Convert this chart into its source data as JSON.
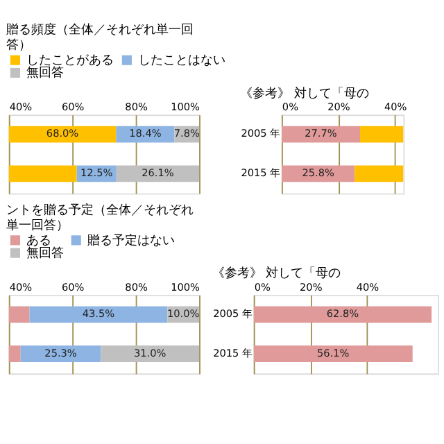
{
  "chart_data": [
    {
      "type": "bar",
      "orientation": "horizontal",
      "title": "贈る頻度（全体／それぞれ単一回答）",
      "categories": [
        null,
        null
      ],
      "legend": "top",
      "grid": "x",
      "xlim": [
        40,
        100
      ],
      "xticks": [
        {
          "value": 40,
          "label": "40%"
        },
        {
          "value": 60,
          "label": "60%"
        },
        {
          "value": 80,
          "label": "80%"
        },
        {
          "value": 100,
          "label": "100%"
        }
      ],
      "series": [
        {
          "name": "したことがある",
          "color": "#ffc000",
          "values": [
            68.0,
            53.5
          ],
          "base": [
            5.8,
            7.9
          ],
          "value_labels": [
            "68.0%",
            null
          ]
        },
        {
          "name": "したことはない",
          "color": "#8db4e2",
          "values": [
            18.4,
            12.5
          ],
          "base": [
            73.8,
            61.4
          ],
          "value_labels": [
            "18.4%",
            "12.5%"
          ]
        },
        {
          "name": "無回答",
          "color": "#c0c0c0",
          "values": [
            7.8,
            26.1
          ],
          "base": [
            92.2,
            73.9
          ],
          "value_labels": [
            "7.8%",
            "26.1%"
          ]
        }
      ]
    },
    {
      "type": "bar",
      "orientation": "horizontal",
      "title": "《参考》 対して「母の",
      "categories": [
        "2005 年",
        "2015 年"
      ],
      "grid": "x",
      "stacked": true,
      "xlim": [
        0,
        43
      ],
      "xticks": [
        {
          "value": 0,
          "label": "0%"
        },
        {
          "value": 20,
          "label": "20%"
        },
        {
          "value": 40,
          "label": "40%"
        }
      ],
      "series": [
        {
          "color": "#e09a9a",
          "values": [
            27.7,
            25.8
          ],
          "value_labels": [
            "27.7%",
            "25.8%"
          ]
        },
        {
          "color": "#ffc000",
          "values": [
            15.3,
            17.2
          ],
          "value_labels": [
            null,
            null
          ]
        }
      ]
    },
    {
      "type": "bar",
      "orientation": "horizontal",
      "title": "ントを贈る予定（全体／それぞれ単一回答）",
      "categories": [
        null,
        null
      ],
      "legend": "top",
      "grid": "x",
      "xlim": [
        40,
        100
      ],
      "xticks": [
        {
          "value": 40,
          "label": "40%"
        },
        {
          "value": 60,
          "label": "60%"
        },
        {
          "value": 80,
          "label": "80%"
        },
        {
          "value": 100,
          "label": "100%"
        }
      ],
      "series": [
        {
          "name": "ある",
          "color": "#e09a9a",
          "values": [
            46.5,
            43.7
          ],
          "base": [
            0,
            0
          ],
          "value_labels": [
            null,
            null
          ]
        },
        {
          "name": "贈る予定はない",
          "color": "#8db4e2",
          "values": [
            43.5,
            25.3
          ],
          "base": [
            46.5,
            43.7
          ],
          "value_labels": [
            "43.5%",
            "25.3%"
          ]
        },
        {
          "name": "無回答",
          "color": "#c0c0c0",
          "values": [
            10.0,
            31.0
          ],
          "base": [
            90.0,
            69.0
          ],
          "value_labels": [
            "10.0%",
            "31.0%"
          ]
        }
      ]
    },
    {
      "type": "bar",
      "orientation": "horizontal",
      "title": "《参考》 対して「母の",
      "categories": [
        "2005 年",
        "2015 年"
      ],
      "grid": "x",
      "xlim": [
        0,
        65
      ],
      "xticks": [
        {
          "value": 0,
          "label": "0%"
        },
        {
          "value": 20,
          "label": "20%"
        },
        {
          "value": 40,
          "label": "40%"
        }
      ],
      "series": [
        {
          "color": "#e09a9a",
          "values": [
            62.8,
            56.1
          ],
          "value_labels": [
            "62.8%",
            "56.1%"
          ]
        }
      ]
    }
  ]
}
